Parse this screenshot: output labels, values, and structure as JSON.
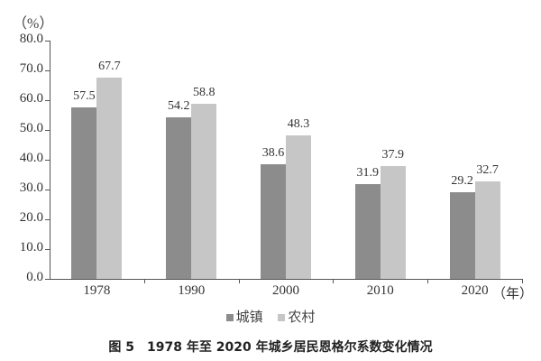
{
  "chart_data": {
    "type": "bar",
    "title": "图 5　1978 年至 2020 年城乡居民恩格尔系数变化情况",
    "xlabel": "（年）",
    "ylabel": "（%）",
    "ylim": [
      0,
      80
    ],
    "yticks": [
      "0.0",
      "10.0",
      "20.0",
      "30.0",
      "40.0",
      "50.0",
      "60.0",
      "70.0",
      "80.0"
    ],
    "categories": [
      "1978",
      "1990",
      "2000",
      "2010",
      "2020"
    ],
    "series": [
      {
        "name": "城镇",
        "color": "#8c8c8c",
        "values": [
          57.5,
          54.2,
          38.6,
          31.9,
          29.2
        ]
      },
      {
        "name": "农村",
        "color": "#c6c6c6",
        "values": [
          67.7,
          58.8,
          48.3,
          37.9,
          32.7
        ]
      }
    ],
    "grid": false,
    "legend_position": "bottom"
  },
  "labels": {
    "unit": "（%）",
    "x_unit": "（年）",
    "caption": "图 5　1978 年至 2020 年城乡居民恩格尔系数变化情况",
    "legend": [
      "城镇",
      "农村"
    ],
    "value_labels": {
      "urban": [
        "57.5",
        "54.2",
        "38.6",
        "31.9",
        "29.2"
      ],
      "rural": [
        "67.7",
        "58.8",
        "48.3",
        "37.9",
        "32.7"
      ]
    }
  }
}
